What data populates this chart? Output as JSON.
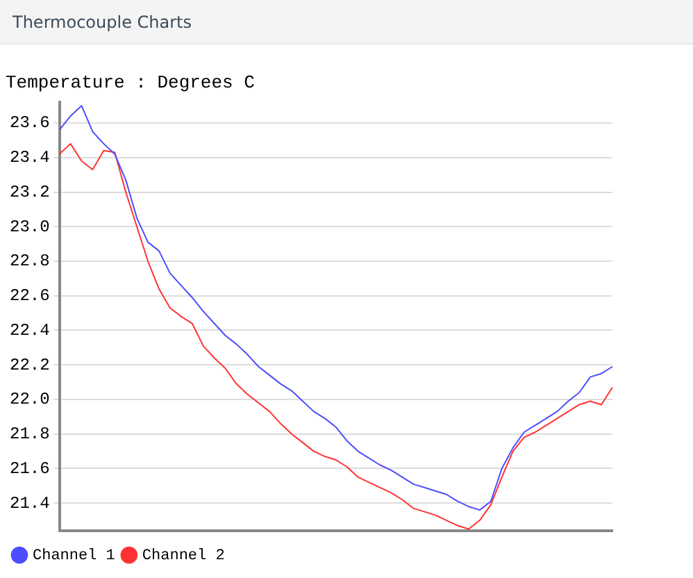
{
  "chart_data": {
    "type": "line",
    "title": "Thermocouple Charts",
    "subtitle": "Temperature : Degrees C",
    "categories": [
      null,
      null,
      null,
      null,
      null,
      null,
      null,
      null,
      null,
      null,
      null,
      null,
      null,
      null,
      null,
      null,
      null,
      null,
      null,
      null,
      null,
      null,
      null,
      null,
      null,
      null,
      null,
      null,
      null,
      null,
      null,
      null,
      null,
      null,
      null,
      null,
      null,
      null,
      null,
      null,
      null,
      null,
      null,
      null,
      null,
      null,
      null,
      null,
      null,
      null,
      null
    ],
    "series": [
      {
        "name": "Channel 1",
        "color": "#4d4dff",
        "values": [
          23.56,
          23.64,
          23.7,
          23.55,
          23.48,
          23.42,
          23.27,
          23.05,
          22.91,
          22.86,
          22.73,
          22.66,
          22.59,
          22.51,
          22.44,
          22.37,
          22.32,
          22.26,
          22.19,
          22.14,
          22.09,
          22.05,
          21.99,
          21.93,
          21.89,
          21.84,
          21.76,
          21.7,
          21.66,
          21.62,
          21.59,
          21.55,
          21.51,
          21.49,
          21.47,
          21.45,
          21.41,
          21.38,
          21.36,
          21.41,
          21.6,
          21.72,
          21.81,
          21.85,
          21.89,
          21.93,
          21.99,
          22.04,
          22.13,
          22.15,
          22.19
        ]
      },
      {
        "name": "Channel 2",
        "color": "#ff3333",
        "values": [
          23.42,
          23.48,
          23.38,
          23.33,
          23.44,
          23.43,
          23.2,
          23.0,
          22.8,
          22.64,
          22.53,
          22.48,
          22.44,
          22.31,
          22.24,
          22.18,
          22.09,
          22.03,
          21.98,
          21.93,
          21.86,
          21.8,
          21.75,
          21.7,
          21.67,
          21.65,
          21.61,
          21.55,
          21.52,
          21.49,
          21.46,
          21.42,
          21.37,
          21.35,
          21.33,
          21.3,
          21.27,
          21.25,
          21.3,
          21.39,
          21.55,
          21.7,
          21.78,
          21.81,
          21.85,
          21.89,
          21.93,
          21.97,
          21.99,
          21.97,
          22.07
        ]
      }
    ],
    "ylim": [
      21.24,
      23.72
    ],
    "yticks": [
      21.4,
      21.6,
      21.8,
      {
        "value": 22,
        "label": "22.0"
      },
      22.2,
      22.4,
      22.6,
      22.8,
      {
        "value": 23,
        "label": "23.0"
      },
      23.2,
      23.4,
      23.6
    ],
    "tick_labels": "y",
    "grid": "y",
    "legend": "bottom left",
    "marker": "none",
    "line_style": "solid"
  }
}
